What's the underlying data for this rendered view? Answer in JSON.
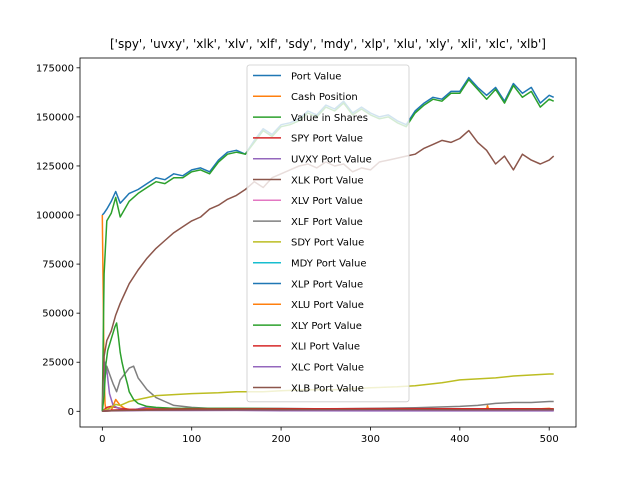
{
  "chart_data": {
    "type": "line",
    "title": "['spy', 'uvxy', 'xlk', 'xlv', 'xlf', 'sdy', 'mdy', 'xlp', 'xlu', 'xly', 'xli', 'xlc', 'xlb']",
    "xlabel": "",
    "ylabel": "",
    "xlim": [
      -25,
      530
    ],
    "ylim": [
      -8000,
      180000
    ],
    "xticks": [
      0,
      100,
      200,
      300,
      400,
      500
    ],
    "yticks": [
      0,
      25000,
      50000,
      75000,
      100000,
      125000,
      150000,
      175000
    ],
    "xtick_labels": [
      "0",
      "100",
      "200",
      "300",
      "400",
      "500"
    ],
    "ytick_labels": [
      "0",
      "25000",
      "50000",
      "75000",
      "100000",
      "125000",
      "150000",
      "175000"
    ],
    "grid": false,
    "legend_position": "top-center",
    "series": [
      {
        "name": "Port Value",
        "color": "#1f77b4",
        "x": [
          0,
          2,
          5,
          10,
          15,
          20,
          30,
          40,
          50,
          60,
          70,
          80,
          90,
          100,
          110,
          120,
          130,
          140,
          150,
          160,
          170,
          180,
          190,
          200,
          210,
          220,
          230,
          240,
          250,
          260,
          270,
          280,
          290,
          300,
          310,
          320,
          330,
          340,
          350,
          360,
          370,
          380,
          390,
          400,
          410,
          420,
          430,
          440,
          450,
          460,
          470,
          480,
          490,
          500,
          505
        ],
        "y": [
          100000,
          101000,
          103000,
          107000,
          112000,
          106000,
          111000,
          113000,
          116000,
          119000,
          118000,
          121000,
          120000,
          123000,
          124000,
          122000,
          128000,
          132000,
          133000,
          131000,
          138000,
          144000,
          141000,
          146000,
          147000,
          149000,
          153000,
          151000,
          156000,
          154000,
          158000,
          152000,
          155000,
          152000,
          150000,
          151000,
          148000,
          146000,
          153000,
          157000,
          160000,
          159000,
          163000,
          163000,
          170000,
          165000,
          161000,
          165000,
          158000,
          167000,
          162000,
          165000,
          157000,
          161000,
          160000
        ]
      },
      {
        "name": "Cash Position",
        "color": "#ff7f0e",
        "x": [
          0,
          1,
          2,
          3,
          4,
          6,
          10,
          15,
          20,
          25,
          30,
          40,
          50,
          60,
          80,
          100,
          150,
          200,
          250,
          300,
          350,
          400,
          430,
          431,
          432,
          440,
          460,
          480,
          500,
          505
        ],
        "y": [
          100000,
          60000,
          20000,
          4000,
          500,
          200,
          500,
          6000,
          3000,
          1500,
          800,
          1000,
          1500,
          1200,
          800,
          1000,
          900,
          800,
          700,
          900,
          800,
          1000,
          1000,
          3000,
          1200,
          800,
          900,
          1000,
          1500,
          1000
        ]
      },
      {
        "name": "Value in Shares",
        "color": "#2ca02c",
        "x": [
          0,
          2,
          5,
          10,
          15,
          20,
          30,
          40,
          50,
          60,
          70,
          80,
          90,
          100,
          110,
          120,
          130,
          140,
          150,
          160,
          170,
          180,
          190,
          200,
          210,
          220,
          230,
          240,
          250,
          260,
          270,
          280,
          290,
          300,
          310,
          320,
          330,
          340,
          350,
          360,
          370,
          380,
          390,
          400,
          410,
          420,
          430,
          440,
          450,
          460,
          470,
          480,
          490,
          500,
          505
        ],
        "y": [
          0,
          70000,
          97000,
          101000,
          109000,
          99000,
          107000,
          111000,
          114000,
          117000,
          116000,
          119000,
          119000,
          122000,
          123000,
          121000,
          127000,
          131000,
          132000,
          131000,
          137000,
          143000,
          140000,
          145000,
          146000,
          148000,
          152000,
          150000,
          155000,
          153000,
          157000,
          151000,
          154000,
          151000,
          149000,
          150000,
          147000,
          145000,
          152000,
          156000,
          159000,
          158000,
          162000,
          162000,
          169000,
          164000,
          159000,
          164000,
          157000,
          166000,
          160000,
          163000,
          155000,
          159000,
          158000
        ]
      },
      {
        "name": "SPY Port Value",
        "color": "#d62728",
        "x": [
          0,
          5,
          10,
          20,
          30,
          50,
          100,
          200,
          300,
          400,
          500,
          505
        ],
        "y": [
          0,
          2000,
          2500,
          1500,
          1000,
          800,
          700,
          800,
          700,
          700,
          800,
          800
        ]
      },
      {
        "name": "UVXY Port Value",
        "color": "#9467bd",
        "x": [
          0,
          3,
          5,
          8,
          12,
          20,
          30,
          40,
          50,
          60,
          80,
          100,
          150,
          200,
          300,
          400,
          500,
          505
        ],
        "y": [
          0,
          25000,
          21000,
          9000,
          3000,
          1000,
          500,
          1200,
          2200,
          1800,
          1500,
          1000,
          500,
          300,
          200,
          200,
          200,
          200
        ]
      },
      {
        "name": "XLK Port Value",
        "color": "#8c564b",
        "x": [
          0,
          2,
          5,
          10,
          15,
          20,
          25,
          30,
          40,
          50,
          60,
          70,
          80,
          90,
          100,
          110,
          120,
          130,
          140,
          150,
          160,
          170,
          180,
          190,
          200,
          210,
          220,
          230,
          240,
          250,
          260,
          270,
          280,
          290,
          300,
          310,
          320,
          330,
          340,
          350,
          360,
          370,
          380,
          390,
          400,
          410,
          420,
          430,
          440,
          450,
          460,
          470,
          480,
          490,
          500,
          505
        ],
        "y": [
          0,
          28000,
          36000,
          41000,
          49000,
          55000,
          60000,
          65000,
          72000,
          78000,
          83000,
          87000,
          91000,
          94000,
          97000,
          99000,
          103000,
          105000,
          108000,
          110000,
          113000,
          117000,
          114000,
          119000,
          121000,
          123000,
          125000,
          126000,
          124000,
          127000,
          125000,
          126000,
          122000,
          124000,
          123000,
          127000,
          128000,
          129000,
          130000,
          131000,
          134000,
          136000,
          138000,
          137000,
          139000,
          143000,
          137000,
          133000,
          126000,
          130000,
          123000,
          131000,
          128000,
          126000,
          128000,
          130000
        ]
      },
      {
        "name": "XLV Port Value",
        "color": "#e377c2",
        "x": [
          0,
          10,
          50,
          100,
          200,
          300,
          400,
          500,
          505
        ],
        "y": [
          0,
          500,
          800,
          900,
          1000,
          1100,
          1000,
          900,
          900
        ]
      },
      {
        "name": "XLF Port Value",
        "color": "#7f7f7f",
        "x": [
          0,
          2,
          5,
          8,
          12,
          16,
          20,
          25,
          30,
          35,
          40,
          45,
          50,
          55,
          60,
          70,
          80,
          90,
          100,
          120,
          150,
          200,
          250,
          300,
          350,
          400,
          420,
          440,
          460,
          480,
          500,
          505
        ],
        "y": [
          0,
          15000,
          23000,
          19000,
          14000,
          10000,
          16000,
          19000,
          22000,
          23000,
          17000,
          14000,
          11000,
          9000,
          7000,
          5000,
          3000,
          2500,
          2000,
          1500,
          1500,
          1500,
          1200,
          1500,
          1800,
          2500,
          3000,
          4000,
          4500,
          4500,
          5000,
          5000
        ]
      },
      {
        "name": "SDY Port Value",
        "color": "#bcbd22",
        "x": [
          0,
          5,
          10,
          15,
          20,
          30,
          40,
          50,
          60,
          80,
          100,
          130,
          150,
          180,
          200,
          230,
          260,
          280,
          300,
          330,
          350,
          380,
          400,
          420,
          440,
          460,
          480,
          500,
          505
        ],
        "y": [
          0,
          1000,
          2000,
          3500,
          3000,
          5000,
          6000,
          7000,
          8000,
          8500,
          9000,
          9500,
          10000,
          10000,
          10500,
          11000,
          11000,
          11500,
          12000,
          12500,
          13000,
          14500,
          16000,
          16500,
          17000,
          18000,
          18500,
          19000,
          19000
        ]
      },
      {
        "name": "MDY Port Value",
        "color": "#17becf",
        "x": [
          0,
          10,
          50,
          100,
          200,
          300,
          400,
          500,
          505
        ],
        "y": [
          0,
          400,
          600,
          700,
          800,
          900,
          800,
          700,
          700
        ]
      },
      {
        "name": "XLP Port Value",
        "color": "#1f77b4",
        "x": [
          0,
          10,
          50,
          100,
          200,
          300,
          400,
          500,
          505
        ],
        "y": [
          0,
          500,
          900,
          1000,
          1200,
          1300,
          1200,
          1100,
          1100
        ]
      },
      {
        "name": "XLU Port Value",
        "color": "#ff7f0e",
        "x": [
          0,
          10,
          50,
          100,
          200,
          300,
          400,
          500,
          505
        ],
        "y": [
          0,
          300,
          500,
          600,
          700,
          800,
          700,
          700,
          700
        ]
      },
      {
        "name": "XLY Port Value",
        "color": "#2ca02c",
        "x": [
          0,
          2,
          4,
          6,
          8,
          10,
          12,
          14,
          16,
          18,
          20,
          22,
          25,
          28,
          30,
          35,
          40,
          50,
          60,
          80,
          100,
          150,
          200,
          300,
          400,
          500,
          505
        ],
        "y": [
          0,
          8000,
          24000,
          31000,
          34000,
          37000,
          40000,
          43000,
          45000,
          38000,
          30000,
          25000,
          19000,
          14000,
          10000,
          6000,
          4000,
          2500,
          2000,
          1500,
          1500,
          1500,
          1300,
          1300,
          1200,
          1200,
          1200
        ]
      },
      {
        "name": "XLI Port Value",
        "color": "#d62728",
        "x": [
          0,
          10,
          50,
          100,
          200,
          300,
          400,
          500,
          505
        ],
        "y": [
          0,
          600,
          1000,
          1100,
          1200,
          1400,
          1300,
          1200,
          1200
        ]
      },
      {
        "name": "XLC Port Value",
        "color": "#9467bd",
        "x": [
          0,
          10,
          50,
          100,
          200,
          300,
          400,
          500,
          505
        ],
        "y": [
          0,
          200,
          400,
          400,
          500,
          500,
          500,
          400,
          400
        ]
      },
      {
        "name": "XLB Port Value",
        "color": "#8c564b",
        "x": [
          0,
          10,
          50,
          100,
          200,
          300,
          400,
          500,
          505
        ],
        "y": [
          0,
          300,
          600,
          700,
          800,
          900,
          800,
          800,
          800
        ]
      }
    ]
  }
}
